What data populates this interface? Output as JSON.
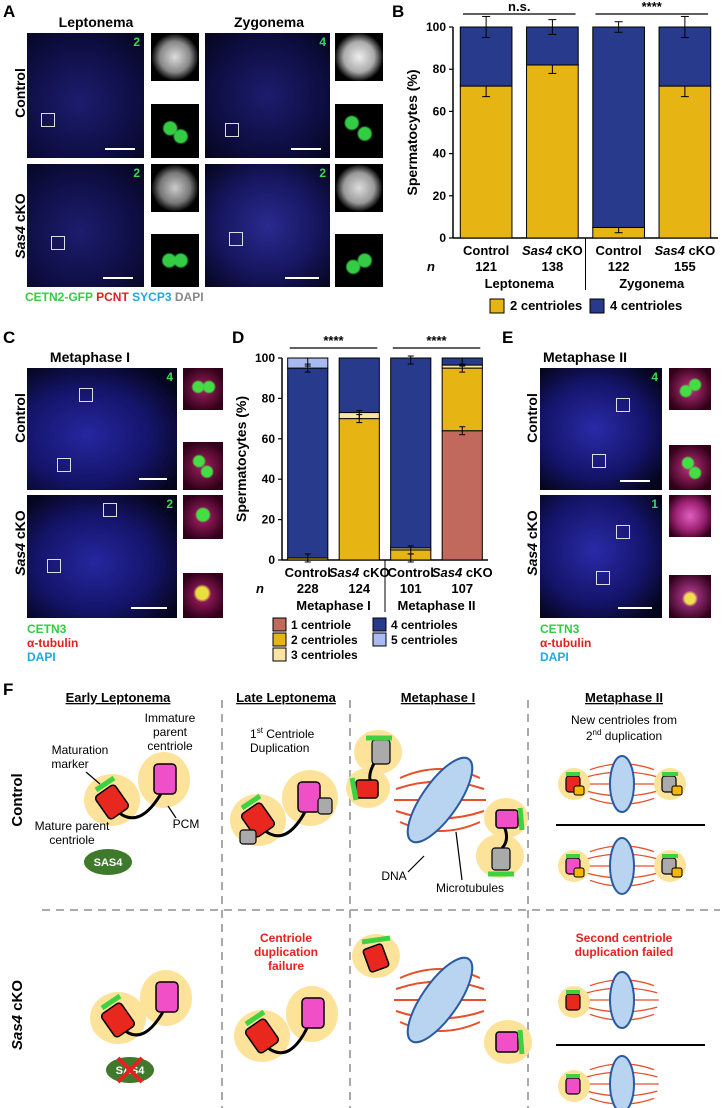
{
  "panel_labels": {
    "A": "A",
    "B": "B",
    "C": "C",
    "D": "D",
    "E": "E",
    "F": "F"
  },
  "panelA": {
    "col_leptonema": "Leptonema",
    "col_zygonema": "Zygonema",
    "row_control": "Control",
    "row_sas4_gene": "Sas4",
    "row_sas4_suffix": " cKO",
    "counts": [
      "2",
      "4",
      "2",
      "2"
    ],
    "legend": {
      "cetn2": "CETN2-GFP",
      "pcnt": "PCNT",
      "sycp3": "SYCP3",
      "dapi": "DAPI"
    },
    "colors": {
      "cetn2": "#33cc44",
      "pcnt": "#e02020",
      "sycp3": "#22a8e0",
      "dapi": "#888888"
    }
  },
  "panelC": {
    "title": "Metaphase I",
    "row_control": "Control",
    "row_sas4_gene": "Sas4",
    "row_sas4_suffix": " cKO",
    "counts": [
      "4",
      "2"
    ],
    "legend": {
      "cetn3": "CETN3",
      "tubulin": "α-tubulin",
      "dapi": "DAPI"
    }
  },
  "panelE": {
    "title": "Metaphase II",
    "row_control": "Control",
    "row_sas4_gene": "Sas4",
    "row_sas4_suffix": " cKO",
    "counts": [
      "4",
      "1"
    ],
    "legend": {
      "cetn3": "CETN3",
      "tubulin": "α-tubulin",
      "dapi": "DAPI"
    }
  },
  "chart_data": [
    {
      "type": "bar",
      "stacked": true,
      "panel": "B",
      "ylabel": "Spermatocytes (%)",
      "ylim": [
        0,
        100
      ],
      "yticks": [
        0,
        20,
        40,
        60,
        80,
        100
      ],
      "categories": [
        "Control",
        "Sas4 cKO",
        "Control",
        "Sas4 cKO"
      ],
      "category_parts": [
        [
          "Control",
          ""
        ],
        [
          "Sas4",
          " cKO"
        ],
        [
          "Control",
          ""
        ],
        [
          "Sas4",
          " cKO"
        ]
      ],
      "n_label": "n",
      "n": [
        "121",
        "138",
        "122",
        "155"
      ],
      "groups": [
        {
          "label": "Leptonema"
        },
        {
          "label": "Zygonema"
        }
      ],
      "series": [
        {
          "name": "2 centrioles",
          "color": "#e6b413",
          "values": [
            72,
            82,
            5,
            72
          ],
          "err": [
            5,
            4,
            2.5,
            5
          ]
        },
        {
          "name": "4 centrioles",
          "color": "#273a8c",
          "values": [
            28,
            18,
            95,
            28
          ],
          "err": [
            5,
            3.5,
            2.5,
            5
          ]
        }
      ],
      "significance": [
        {
          "text": "n.s."
        },
        {
          "text": "****"
        }
      ],
      "legend_position": "bottom"
    },
    {
      "type": "bar",
      "stacked": true,
      "panel": "D",
      "ylabel": "Spermatocytes (%)",
      "ylim": [
        0,
        100
      ],
      "yticks": [
        0,
        20,
        40,
        60,
        80,
        100
      ],
      "categories": [
        "Control",
        "Sas4 cKO",
        "Control",
        "Sas4 cKO"
      ],
      "category_parts": [
        [
          "Control",
          ""
        ],
        [
          "Sas4",
          " cKO"
        ],
        [
          "Control",
          ""
        ],
        [
          "Sas4",
          " cKO"
        ]
      ],
      "n_label": "n",
      "n": [
        "228",
        "124",
        "101",
        "107"
      ],
      "groups": [
        {
          "label": "Metaphase I"
        },
        {
          "label": "Metaphase II"
        }
      ],
      "series": [
        {
          "name": "1 centriole",
          "color": "#c0695c",
          "values": [
            0,
            0,
            0,
            64
          ]
        },
        {
          "name": "2 centrioles",
          "color": "#e6b413",
          "values": [
            1,
            70,
            5,
            31
          ]
        },
        {
          "name": "3 centrioles",
          "color": "#fbe3a2",
          "values": [
            0,
            3,
            1,
            1.5
          ]
        },
        {
          "name": "4 centrioles",
          "color": "#273a8c",
          "values": [
            94,
            27,
            94,
            3.5
          ]
        },
        {
          "name": "5 centrioles",
          "color": "#a8baf0",
          "values": [
            5,
            0,
            0,
            0
          ]
        }
      ],
      "error_marks": [
        [
          1,
          95,
          98
        ],
        [
          70,
          72
        ],
        [
          1,
          5,
          99
        ],
        [
          64,
          95,
          98
        ]
      ],
      "significance": [
        {
          "text": "****"
        },
        {
          "text": "****"
        }
      ],
      "legend_position": "bottom"
    }
  ],
  "panelF": {
    "col_headers": [
      "Early Leptonema",
      "Late Leptonema",
      "Metaphase I",
      "Metaphase II"
    ],
    "row_control": "Control",
    "row_sas4_gene": "Sas4",
    "row_sas4_suffix": " cKO",
    "labels": {
      "immature_line1": "Immature",
      "immature_line2": "parent",
      "immature_line3": "centriole",
      "maturation_line1": "Maturation",
      "maturation_line2": "marker",
      "pcm": "PCM",
      "mature_line1": "Mature parent",
      "mature_line2": "centriole",
      "sas4": "SAS4",
      "dup1_sup": "st",
      "dup1_pre": "1",
      "dup1_line1": " Centriole",
      "dup1_line2": "Duplication",
      "dna": "DNA",
      "microtubules": "Microtubules",
      "new_line1": "New centrioles from",
      "new_line2_pre": "2",
      "new_line2_sup": "nd",
      "new_line2_post": " duplication",
      "fail1_line1": "Centriole",
      "fail1_line2": "duplication",
      "fail1_line3": "failure",
      "fail2_line1": "Second centriole",
      "fail2_line2": "duplication failed"
    },
    "colors": {
      "mature": "#e8281e",
      "immature": "#f04fc8",
      "daughter": "#aaaaaa",
      "daughter2": "#f5b800",
      "marker": "#3fd13f",
      "pcm": "#fde39a",
      "sas4": "#3f7a2c",
      "dna": "#b8d4f0",
      "mt": "#e8502a",
      "fail": "#e82020"
    }
  }
}
